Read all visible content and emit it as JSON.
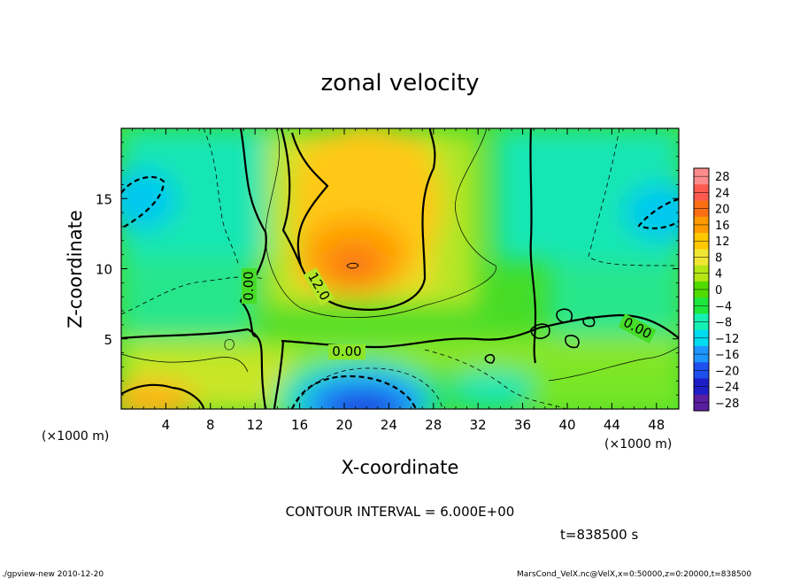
{
  "chart_data": {
    "type": "heatmap",
    "title": "zonal velocity",
    "xlabel": "X-coordinate",
    "ylabel": "Z-coordinate",
    "x_unit_left": "(×1000 m)",
    "x_unit_right": "(×1000 m)",
    "xlim": [
      0,
      50
    ],
    "ylim": [
      0,
      20
    ],
    "x_ticks": [
      4,
      8,
      12,
      16,
      20,
      24,
      28,
      32,
      36,
      40,
      44,
      48
    ],
    "x_tick_labels": [
      "4",
      "8",
      "12",
      "16",
      "20",
      "24",
      "28",
      "32",
      "36",
      "40",
      "44",
      "48"
    ],
    "y_ticks": [
      5,
      10,
      15
    ],
    "y_tick_labels": [
      "5",
      "10",
      "15"
    ],
    "colorbar": {
      "levels": [
        28,
        24,
        20,
        16,
        12,
        8,
        4,
        0,
        -4,
        -8,
        -12,
        -16,
        -20,
        -24,
        -28
      ],
      "labels": [
        "28",
        "24",
        "20",
        "16",
        "12",
        "8",
        "4",
        "0",
        "−4",
        "−8",
        "−12",
        "−16",
        "−20",
        "−24",
        "−28"
      ],
      "colors": [
        "#ff8c8c",
        "#ff5a50",
        "#fa6e14",
        "#ff9b00",
        "#ffc800",
        "#f0e632",
        "#b4e614",
        "#50dc00",
        "#1ee63c",
        "#14f0b4",
        "#00dcf0",
        "#1e96ff",
        "#1e50f0",
        "#1e1ec8",
        "#5a1ea0"
      ]
    },
    "contour_interval": "CONTOUR INTERVAL = 6.000E+00",
    "contour_labels": [
      {
        "text": "0.00",
        "x": 12.2,
        "y": 8.3,
        "angle": -90
      },
      {
        "text": "12.0",
        "x": 17.5,
        "y": 8.5,
        "angle": 60
      },
      {
        "text": "0.00",
        "x": 20.5,
        "y": 4.2,
        "angle": 0
      },
      {
        "text": "0.00",
        "x": 45.0,
        "y": 5.8,
        "angle": 28
      }
    ],
    "time_label": "t=838500 s",
    "features": [
      {
        "kind": "max",
        "x": 21,
        "y": 10.2,
        "value": 20
      },
      {
        "kind": "min",
        "x": 21,
        "y": 0.6,
        "value": -24
      }
    ]
  },
  "footer": {
    "left": "./gpview-new  2010-12-20",
    "right": "MarsCond_VelX.nc@VelX,x=0:50000,z=0:20000,t=838500"
  }
}
